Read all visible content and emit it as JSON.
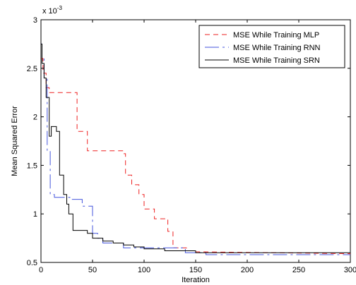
{
  "chart_data": {
    "type": "line",
    "xlabel": "Iteration",
    "ylabel": "Mean Squared Error",
    "exponent_label": "x 10",
    "exponent_power": "-3",
    "xlim": [
      0,
      300
    ],
    "ylim": [
      0.5,
      3
    ],
    "xticks": [
      0,
      50,
      100,
      150,
      200,
      250,
      300
    ],
    "yticks": [
      0.5,
      1,
      1.5,
      2,
      2.5,
      3
    ],
    "ytick_labels": [
      "0.5",
      "1",
      "1.5",
      "2",
      "2.5",
      "3"
    ],
    "xtick_labels": [
      "0",
      "50",
      "100",
      "150",
      "200",
      "250",
      "300"
    ],
    "grid": false,
    "legend_position": "top-right",
    "series": [
      {
        "name": "MSE While Training MLP",
        "color": "#ee2222",
        "dash": "7,5",
        "x": [
          0,
          2,
          2,
          5,
          5,
          8,
          8,
          10,
          10,
          35,
          35,
          45,
          45,
          80,
          80,
          82,
          82,
          88,
          88,
          95,
          95,
          100,
          100,
          110,
          110,
          123,
          123,
          128,
          128,
          141,
          141,
          150,
          150,
          300
        ],
        "y": [
          2.6,
          2.6,
          2.45,
          2.45,
          2.3,
          2.3,
          2.25,
          2.25,
          2.25,
          2.25,
          1.85,
          1.85,
          1.65,
          1.65,
          1.62,
          1.62,
          1.4,
          1.4,
          1.3,
          1.3,
          1.2,
          1.2,
          1.05,
          1.05,
          0.95,
          0.95,
          0.82,
          0.82,
          0.65,
          0.65,
          0.62,
          0.62,
          0.61,
          0.59
        ]
      },
      {
        "name": "MSE While Training RNN",
        "color": "#4455dd",
        "dash": "20,5,3,5",
        "x": [
          0,
          1,
          1,
          3,
          3,
          6,
          6,
          9,
          9,
          13,
          13,
          28,
          28,
          40,
          40,
          50,
          50,
          55,
          55,
          60,
          60,
          80,
          80,
          140,
          140,
          160,
          160,
          300
        ],
        "y": [
          2.75,
          2.75,
          2.6,
          2.6,
          2.4,
          2.4,
          1.65,
          1.65,
          1.2,
          1.2,
          1.17,
          1.17,
          1.15,
          1.15,
          1.08,
          1.08,
          0.8,
          0.8,
          0.75,
          0.75,
          0.7,
          0.7,
          0.65,
          0.65,
          0.6,
          0.6,
          0.58,
          0.58
        ]
      },
      {
        "name": "MSE While Training SRN",
        "color": "#000000",
        "dash": "",
        "x": [
          0,
          1,
          1,
          3,
          3,
          5,
          5,
          8,
          8,
          10,
          10,
          15,
          15,
          18,
          18,
          22,
          22,
          25,
          25,
          27,
          27,
          31,
          31,
          35,
          35,
          45,
          45,
          50,
          50,
          60,
          60,
          70,
          70,
          80,
          80,
          90,
          90,
          100,
          100,
          120,
          120,
          150,
          150,
          300
        ],
        "y": [
          2.75,
          2.75,
          2.55,
          2.55,
          2.4,
          2.4,
          2.2,
          2.2,
          1.8,
          1.8,
          1.9,
          1.9,
          1.85,
          1.85,
          1.4,
          1.4,
          1.2,
          1.2,
          1.1,
          1.1,
          1.0,
          1.0,
          0.83,
          0.83,
          0.83,
          0.83,
          0.8,
          0.8,
          0.75,
          0.75,
          0.72,
          0.72,
          0.7,
          0.7,
          0.68,
          0.68,
          0.66,
          0.66,
          0.64,
          0.64,
          0.62,
          0.62,
          0.6,
          0.6
        ]
      }
    ]
  }
}
